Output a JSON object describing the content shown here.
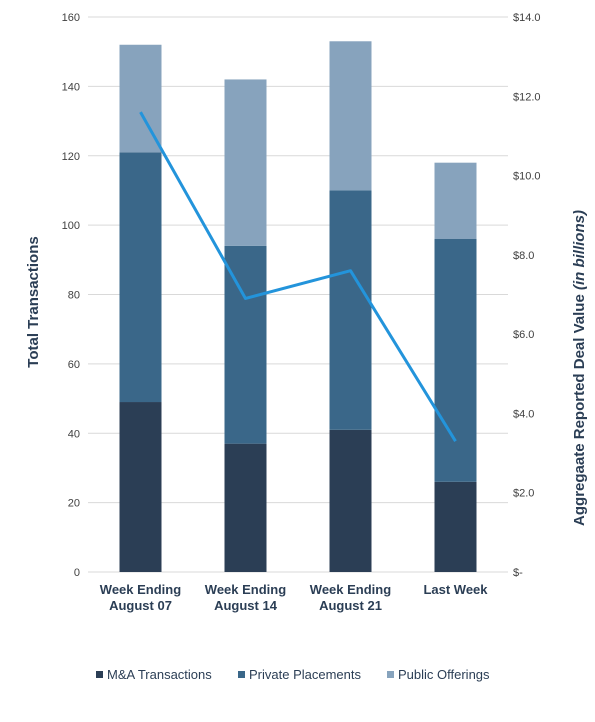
{
  "chart_data": {
    "type": "bar",
    "stacked": true,
    "categories": [
      [
        "Week Ending",
        "August 07"
      ],
      [
        "Week Ending",
        "August 14"
      ],
      [
        "Week Ending",
        "August 21"
      ],
      [
        "Last Week"
      ]
    ],
    "series": [
      {
        "name": "M&A Transactions",
        "color": "#2b3e55",
        "values": [
          49,
          37,
          41,
          26
        ]
      },
      {
        "name": "Private Placements",
        "color": "#3a6789",
        "values": [
          72,
          57,
          69,
          70
        ]
      },
      {
        "name": "Public Offerings",
        "color": "#87a3bd",
        "values": [
          31,
          48,
          43,
          22
        ]
      }
    ],
    "line_series": {
      "name": "Aggregate Reported Deal Value",
      "axis": "right",
      "color": "#2394db",
      "values": [
        11.6,
        6.9,
        7.6,
        3.3
      ]
    },
    "left_axis": {
      "title": "Total Transactions",
      "ylim": [
        0,
        160
      ],
      "ticks": [
        "0",
        "20",
        "40",
        "60",
        "80",
        "100",
        "120",
        "140",
        "160"
      ]
    },
    "right_axis": {
      "title": "Aggregaate Reported Deal Value",
      "title_italic": "(in billions)",
      "ylim": [
        0,
        14
      ],
      "ticks": [
        "$-",
        "$2.0",
        "$4.0",
        "$6.0",
        "$8.0",
        "$10.0",
        "$12.0",
        "$14.0"
      ]
    },
    "grid": true,
    "legend_position": "bottom"
  }
}
